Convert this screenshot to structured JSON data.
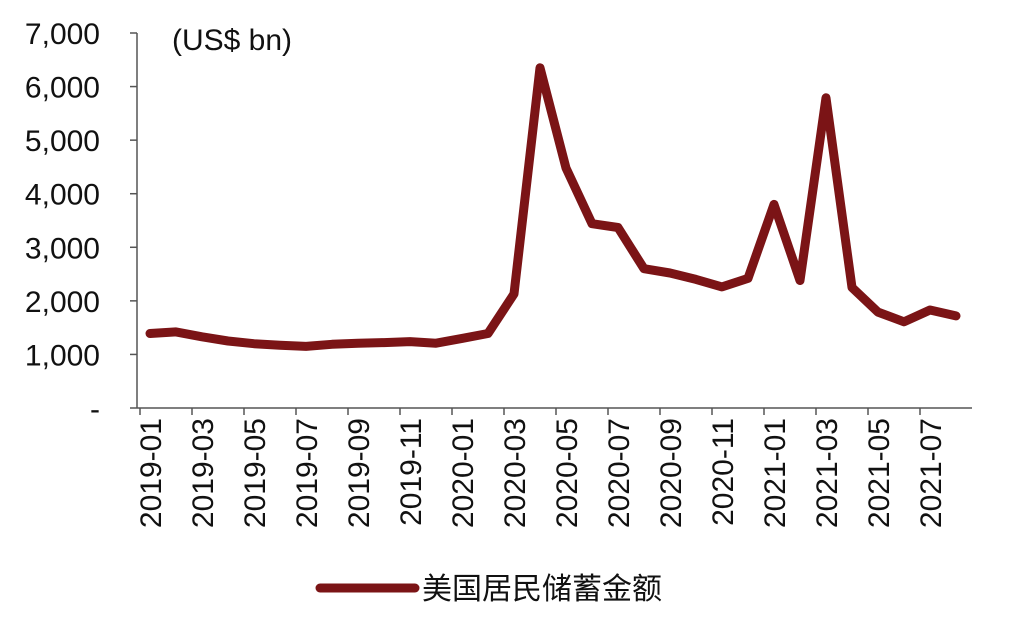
{
  "chart_data": {
    "type": "line",
    "unit_label": "(US$ bn)",
    "y_ticks": [
      "-",
      "1,000",
      "2,000",
      "3,000",
      "4,000",
      "5,000",
      "6,000",
      "7,000"
    ],
    "ylim": [
      0,
      7000
    ],
    "x_tick_labels": [
      "2019-01",
      "2019-03",
      "2019-05",
      "2019-07",
      "2019-09",
      "2019-11",
      "2020-01",
      "2020-03",
      "2020-05",
      "2020-07",
      "2020-09",
      "2020-11",
      "2021-01",
      "2021-03",
      "2021-05",
      "2021-07"
    ],
    "x": [
      "2019-01",
      "2019-02",
      "2019-03",
      "2019-04",
      "2019-05",
      "2019-06",
      "2019-07",
      "2019-08",
      "2019-09",
      "2019-10",
      "2019-11",
      "2019-12",
      "2020-01",
      "2020-02",
      "2020-03",
      "2020-04",
      "2020-05",
      "2020-06",
      "2020-07",
      "2020-08",
      "2020-09",
      "2020-10",
      "2020-11",
      "2020-12",
      "2021-01",
      "2021-02",
      "2021-03",
      "2021-04",
      "2021-05",
      "2021-06",
      "2021-07",
      "2021-08"
    ],
    "series": [
      {
        "name": "美国居民储蓄金额",
        "color": "#7b1416",
        "values": [
          1390,
          1420,
          1330,
          1250,
          1200,
          1170,
          1150,
          1190,
          1210,
          1220,
          1240,
          1210,
          1300,
          1390,
          2130,
          6350,
          4480,
          3440,
          3370,
          2600,
          2520,
          2400,
          2260,
          2420,
          3800,
          2380,
          5790,
          2250,
          1790,
          1610,
          1830,
          1720
        ]
      }
    ],
    "grid": false,
    "legend_position": "bottom"
  }
}
